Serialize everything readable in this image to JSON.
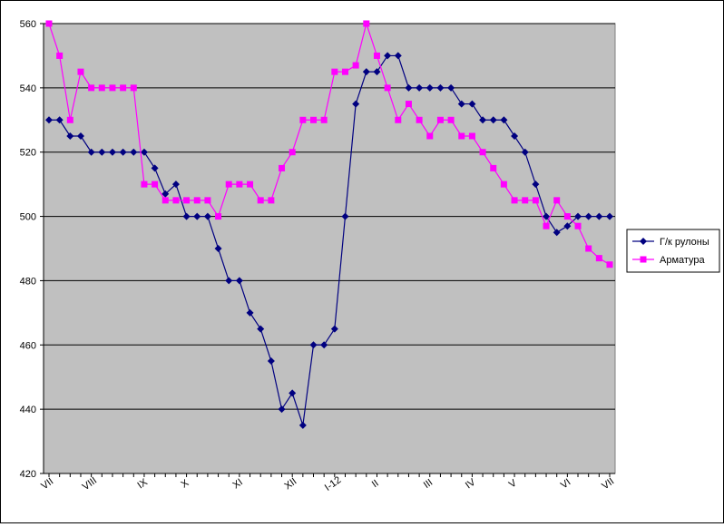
{
  "chart_data": {
    "type": "line",
    "title": "",
    "xlabel": "",
    "ylabel": "",
    "ylim": [
      420,
      560
    ],
    "yticks": [
      420,
      440,
      460,
      480,
      500,
      520,
      540,
      560
    ],
    "grid": "horizontal",
    "legend_position": "right",
    "plot_background": "#c0c0c0",
    "x_tick_labels": [
      {
        "label": "VII",
        "index": 0
      },
      {
        "label": "VIII",
        "index": 4
      },
      {
        "label": "IX",
        "index": 9
      },
      {
        "label": "X",
        "index": 13
      },
      {
        "label": "XI",
        "index": 18
      },
      {
        "label": "XII",
        "index": 23
      },
      {
        "label": "I-12",
        "index": 27
      },
      {
        "label": "II",
        "index": 31
      },
      {
        "label": "III",
        "index": 36
      },
      {
        "label": "IV",
        "index": 40
      },
      {
        "label": "V",
        "index": 44
      },
      {
        "label": "VI",
        "index": 49
      },
      {
        "label": "VII",
        "index": 53
      }
    ],
    "series": [
      {
        "name": "Г/к рулоны",
        "color": "#000080",
        "marker": "diamond",
        "values": [
          530,
          530,
          525,
          525,
          520,
          520,
          520,
          520,
          520,
          520,
          515,
          507,
          510,
          500,
          500,
          500,
          490,
          480,
          480,
          470,
          465,
          455,
          440,
          445,
          435,
          460,
          460,
          465,
          500,
          535,
          545,
          545,
          550,
          550,
          540,
          540,
          540,
          540,
          540,
          535,
          535,
          530,
          530,
          530,
          525,
          520,
          510,
          500,
          495,
          497,
          500,
          500,
          500,
          500
        ]
      },
      {
        "name": "Арматура",
        "color": "#ff00ff",
        "marker": "square",
        "values": [
          560,
          550,
          530,
          545,
          540,
          540,
          540,
          540,
          540,
          510,
          510,
          505,
          505,
          505,
          505,
          505,
          500,
          510,
          510,
          510,
          505,
          505,
          515,
          520,
          530,
          530,
          530,
          545,
          545,
          547,
          560,
          550,
          540,
          530,
          535,
          530,
          525,
          530,
          530,
          525,
          525,
          520,
          515,
          510,
          505,
          505,
          505,
          497,
          505,
          500,
          497,
          490,
          487,
          485
        ]
      }
    ]
  }
}
